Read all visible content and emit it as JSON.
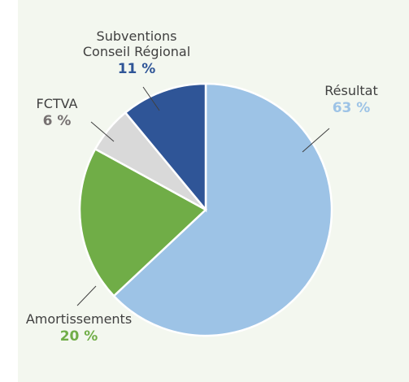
{
  "chart_data": {
    "type": "pie",
    "categories": [
      "Résultat",
      "Amortissements",
      "FCTVA",
      "Subventions Conseil Régional"
    ],
    "values": [
      63,
      20,
      6,
      11
    ],
    "value_labels": [
      "63 %",
      "20 %",
      "6 %",
      "11 %"
    ],
    "colors": [
      "#9dc3e6",
      "#70ad47",
      "#d9d9d9",
      "#2f5597"
    ],
    "value_label_colors": [
      "#9dc3e6",
      "#70ad47",
      "#767171",
      "#2f5597"
    ]
  }
}
